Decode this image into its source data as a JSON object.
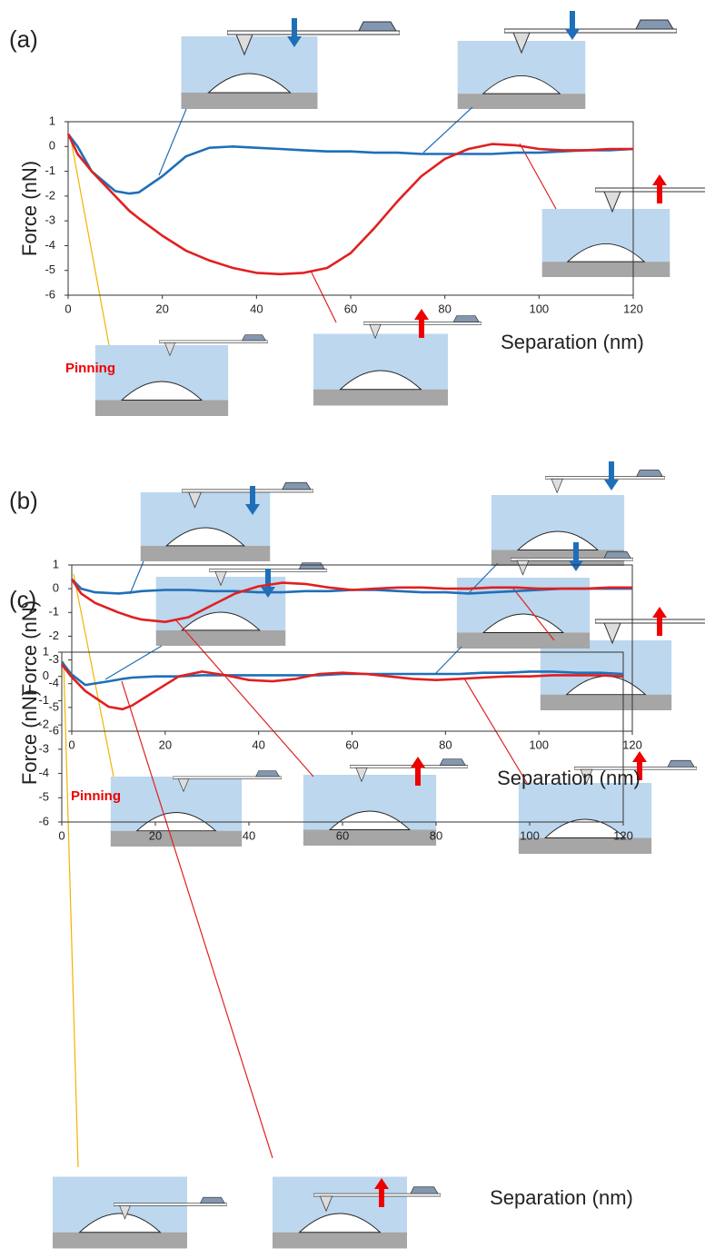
{
  "chart_data": [
    {
      "type": "line",
      "label": "(a)",
      "x_label": "Separation (nm)",
      "y_label": "Force (nN)",
      "annotation": "Pinning",
      "xlim": [
        0,
        120
      ],
      "ylim": [
        -6,
        1
      ],
      "xticks": [
        0,
        20,
        40,
        60,
        80,
        100,
        120
      ],
      "yticks": [
        -6,
        -5,
        -4,
        -3,
        -2,
        -1,
        0,
        1
      ],
      "x": [
        0,
        2,
        5,
        10,
        13,
        15,
        20,
        25,
        30,
        35,
        40,
        45,
        50,
        55,
        60,
        65,
        70,
        75,
        80,
        85,
        90,
        95,
        100,
        105,
        110,
        115,
        120
      ],
      "series": [
        {
          "color": "#1f6fb8",
          "values": [
            0.5,
            0,
            -1.0,
            -1.8,
            -1.9,
            -1.85,
            -1.2,
            -0.4,
            -0.05,
            0,
            -0.05,
            -0.1,
            -0.15,
            -0.2,
            -0.2,
            -0.25,
            -0.25,
            -0.3,
            -0.3,
            -0.3,
            -0.3,
            -0.25,
            -0.25,
            -0.2,
            -0.15,
            -0.15,
            -0.1
          ]
        },
        {
          "color": "#e02020",
          "values": [
            0.5,
            -0.3,
            -1.0,
            -2.0,
            -2.6,
            -2.9,
            -3.6,
            -4.2,
            -4.6,
            -4.9,
            -5.1,
            -5.15,
            -5.1,
            -4.9,
            -4.3,
            -3.3,
            -2.2,
            -1.2,
            -0.5,
            -0.1,
            0.1,
            0.05,
            -0.1,
            -0.15,
            -0.15,
            -0.1,
            -0.1
          ]
        }
      ]
    },
    {
      "type": "line",
      "label": "(b)",
      "x_label": "Separation (nm)",
      "y_label": "Force (nN)",
      "annotation": "Pinning",
      "xlim": [
        0,
        120
      ],
      "ylim": [
        -6,
        1
      ],
      "xticks": [
        0,
        20,
        40,
        60,
        80,
        100,
        120
      ],
      "yticks": [
        -6,
        -5,
        -4,
        -3,
        -2,
        -1,
        0,
        1
      ],
      "x": [
        0,
        2,
        5,
        10,
        13,
        15,
        20,
        25,
        30,
        35,
        40,
        45,
        50,
        55,
        60,
        65,
        70,
        75,
        80,
        85,
        90,
        95,
        100,
        105,
        110,
        115,
        120
      ],
      "series": [
        {
          "color": "#1f6fb8",
          "values": [
            0.4,
            0,
            -0.15,
            -0.2,
            -0.15,
            -0.1,
            -0.05,
            -0.05,
            -0.1,
            -0.1,
            -0.15,
            -0.15,
            -0.1,
            -0.1,
            -0.05,
            -0.05,
            -0.1,
            -0.15,
            -0.15,
            -0.2,
            -0.15,
            -0.1,
            -0.05,
            0,
            0,
            0,
            0
          ]
        },
        {
          "color": "#e02020",
          "values": [
            0.4,
            -0.2,
            -0.6,
            -1.0,
            -1.2,
            -1.3,
            -1.4,
            -1.2,
            -0.7,
            -0.2,
            0.1,
            0.25,
            0.2,
            0.05,
            -0.05,
            0,
            0.05,
            0.05,
            0,
            0,
            0.05,
            0.05,
            0,
            0,
            0,
            0.05,
            0.05
          ]
        }
      ]
    },
    {
      "type": "line",
      "label": "(c)",
      "x_label": "Separation (nm)",
      "y_label": "Force (nN)",
      "xlim": [
        0,
        120
      ],
      "ylim": [
        -6,
        1
      ],
      "xticks": [
        0,
        20,
        40,
        60,
        80,
        100,
        120
      ],
      "yticks": [
        -6,
        -5,
        -4,
        -3,
        -2,
        -1,
        0,
        1
      ],
      "x": [
        0,
        2,
        5,
        10,
        13,
        15,
        20,
        25,
        30,
        35,
        40,
        45,
        50,
        55,
        60,
        65,
        70,
        75,
        80,
        85,
        90,
        95,
        100,
        105,
        110,
        115,
        120
      ],
      "series": [
        {
          "color": "#1f6fb8",
          "values": [
            0.6,
            0.1,
            -0.35,
            -0.2,
            -0.1,
            -0.05,
            0,
            0,
            0.05,
            0.05,
            0.05,
            0.05,
            0.05,
            0.05,
            0.1,
            0.1,
            0.1,
            0.1,
            0.1,
            0.1,
            0.15,
            0.15,
            0.2,
            0.2,
            0.15,
            0.15,
            0.1
          ]
        },
        {
          "color": "#e02020",
          "values": [
            0.5,
            0,
            -0.6,
            -1.25,
            -1.35,
            -1.2,
            -0.6,
            0,
            0.2,
            0.05,
            -0.15,
            -0.2,
            -0.1,
            0.1,
            0.15,
            0.1,
            0,
            -0.1,
            -0.15,
            -0.1,
            -0.05,
            0,
            0,
            0.05,
            0.05,
            0.05,
            0
          ]
        }
      ]
    }
  ]
}
